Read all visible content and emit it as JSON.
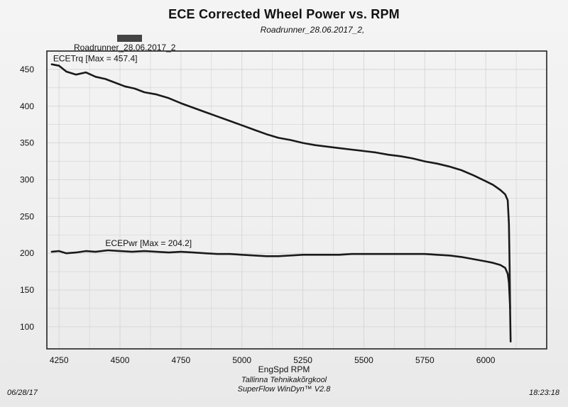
{
  "page": {
    "title": "ECE Corrected Wheel Power vs. RPM",
    "subtitle": "Roadrunner_28.06.2017_2,",
    "legend_label": "Roadrunner_28.06.2017_2",
    "footer_line1": "Tallinna Tehnikakõrgkool",
    "footer_line2": "SuperFlow WinDyn™ V2.8",
    "date": "06/28/17",
    "time": "18:23:18"
  },
  "chart_data": {
    "type": "line",
    "title": "ECE Corrected Wheel Power vs. RPM",
    "xlabel": "EngSpd  RPM",
    "ylabel": "",
    "xlim": [
      4200,
      6250
    ],
    "ylim": [
      70,
      475
    ],
    "xticks": [
      4250,
      4500,
      4750,
      5000,
      5250,
      5500,
      5750,
      6000
    ],
    "yticks": [
      100,
      150,
      200,
      250,
      300,
      350,
      400,
      450
    ],
    "grid": true,
    "colors": {
      "line": "#1a1a1a",
      "grid": "#d2d2d2",
      "frame": "#222222"
    },
    "series": [
      {
        "name": "ECETrq",
        "annotation": "ECETrq [Max = 457.4]",
        "x": [
          4220,
          4250,
          4280,
          4320,
          4360,
          4400,
          4440,
          4480,
          4520,
          4560,
          4600,
          4650,
          4700,
          4750,
          4800,
          4850,
          4900,
          4950,
          5000,
          5050,
          5100,
          5150,
          5200,
          5250,
          5300,
          5350,
          5400,
          5450,
          5500,
          5550,
          5600,
          5650,
          5700,
          5750,
          5800,
          5850,
          5900,
          5950,
          6000,
          6030,
          6060,
          6080,
          6090,
          6095,
          6098,
          6100,
          6102
        ],
        "y": [
          457,
          455,
          447,
          443,
          446,
          440,
          437,
          432,
          427,
          424,
          419,
          416,
          411,
          404,
          398,
          392,
          386,
          380,
          374,
          368,
          362,
          357,
          354,
          350,
          347,
          345,
          343,
          341,
          339,
          337,
          334,
          332,
          329,
          325,
          322,
          318,
          313,
          306,
          298,
          293,
          286,
          280,
          272,
          240,
          180,
          120,
          80
        ]
      },
      {
        "name": "ECEPwr",
        "annotation": "ECEPwr [Max = 204.2]",
        "x": [
          4220,
          4250,
          4280,
          4320,
          4360,
          4400,
          4450,
          4500,
          4550,
          4600,
          4650,
          4700,
          4750,
          4800,
          4850,
          4900,
          4950,
          5000,
          5050,
          5100,
          5150,
          5200,
          5250,
          5300,
          5350,
          5400,
          5450,
          5500,
          5550,
          5600,
          5650,
          5700,
          5750,
          5800,
          5850,
          5900,
          5950,
          6000,
          6030,
          6060,
          6080,
          6090,
          6095,
          6098,
          6100
        ],
        "y": [
          202,
          203,
          200,
          201,
          203,
          202,
          204,
          203,
          202,
          203,
          202,
          201,
          202,
          201,
          200,
          199,
          199,
          198,
          197,
          196,
          196,
          197,
          198,
          198,
          198,
          198,
          199,
          199,
          199,
          199,
          199,
          199,
          199,
          198,
          197,
          195,
          192,
          189,
          187,
          184,
          180,
          172,
          160,
          140,
          125
        ]
      }
    ]
  }
}
